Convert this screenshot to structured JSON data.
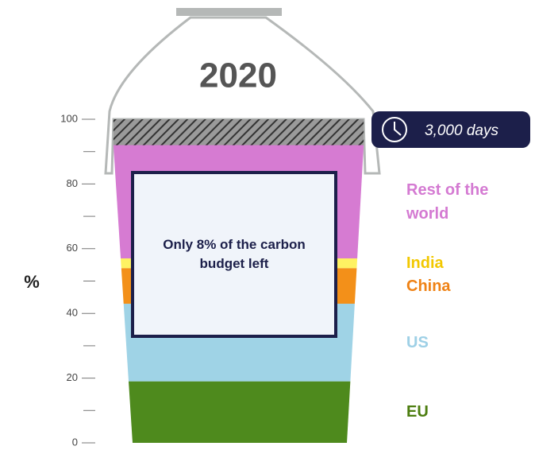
{
  "chart_data": {
    "type": "stacked-bucket",
    "title": "2020",
    "y_label": "%",
    "ylim": [
      0,
      100
    ],
    "yticks": [
      0,
      20,
      40,
      60,
      80,
      100
    ],
    "yticks_minor": [
      10,
      30,
      50,
      70,
      90
    ],
    "series": [
      {
        "name": "EU",
        "color": "#4e8a1d",
        "label_color": "#4c7d0f",
        "values": [
          19
        ]
      },
      {
        "name": "US",
        "color": "#9fd3e6",
        "label_color": "#9ed0e6",
        "values": [
          24
        ]
      },
      {
        "name": "China",
        "color": "#f39019",
        "label_color": "#ef8215",
        "values": [
          11
        ]
      },
      {
        "name": "India",
        "color": "#fef262",
        "label_color": "#f2c800",
        "values": [
          3
        ]
      },
      {
        "name": "Rest of the world",
        "color": "#d67bd2",
        "label_color": "#d47ad2",
        "values": [
          35
        ]
      }
    ],
    "budget_left": 8,
    "annotation": "Only 8% of the carbon budget left",
    "badge": "3,000 days"
  }
}
